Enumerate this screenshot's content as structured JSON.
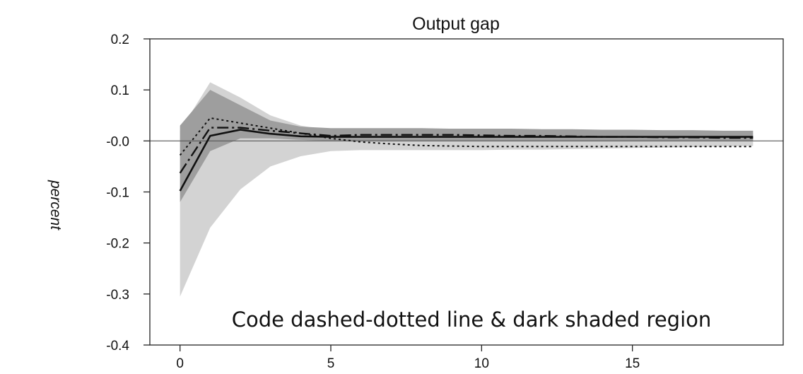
{
  "chart_data": {
    "type": "line",
    "title": "Output gap",
    "ylabel": "percent",
    "xlabel": "",
    "xlim": [
      -1,
      20
    ],
    "ylim": [
      -0.4,
      0.2
    ],
    "xticks": [
      0,
      5,
      10,
      15
    ],
    "xtick_labels": [
      "0",
      "5",
      "10",
      "15"
    ],
    "yticks": [
      0.2,
      0.1,
      0.0,
      -0.1,
      -0.2,
      -0.3,
      -0.4
    ],
    "ytick_labels": [
      "0.2",
      "0.1",
      "-0.0",
      "-0.1",
      "-0.2",
      "-0.3",
      "-0.4"
    ],
    "zero_line": true,
    "grid": false,
    "annotation": "Code dashed-dotted line & dark shaded region",
    "colors": {
      "light_band": "#d3d3d3",
      "dark_band": "#9e9e9e",
      "lines": "#111111"
    },
    "bands": [
      {
        "shade": "light",
        "x": [
          0,
          1,
          2,
          3,
          4,
          5,
          6,
          7,
          8,
          9,
          10,
          11,
          12,
          13,
          14,
          15,
          16,
          17,
          18,
          19
        ],
        "upper": [
          0.02,
          0.115,
          0.085,
          0.05,
          0.03,
          0.02,
          0.018,
          0.018,
          0.017,
          0.016,
          0.016,
          0.016,
          0.016,
          0.016,
          0.016,
          0.016,
          0.016,
          0.015,
          0.015,
          0.015
        ],
        "lower": [
          -0.305,
          -0.17,
          -0.095,
          -0.05,
          -0.03,
          -0.02,
          -0.018,
          -0.018,
          -0.018,
          -0.018,
          -0.018,
          -0.017,
          -0.017,
          -0.016,
          -0.015,
          -0.014,
          -0.013,
          -0.012,
          -0.011,
          -0.01
        ]
      },
      {
        "shade": "dark",
        "x": [
          0,
          1,
          2,
          3,
          4,
          5,
          6,
          7,
          8,
          9,
          10,
          11,
          12,
          13,
          14,
          15,
          16,
          17,
          18,
          19
        ],
        "upper": [
          0.03,
          0.1,
          0.07,
          0.04,
          0.028,
          0.025,
          0.025,
          0.025,
          0.025,
          0.024,
          0.024,
          0.024,
          0.023,
          0.023,
          0.022,
          0.022,
          0.021,
          0.021,
          0.02,
          0.02
        ],
        "lower": [
          -0.12,
          -0.02,
          0.005,
          0.005,
          0.002,
          0.0,
          0.0,
          0.0,
          0.0,
          0.0,
          0.0,
          0.0,
          0.0,
          0.0,
          0.0,
          0.0,
          0.0,
          0.0,
          0.0,
          0.0
        ]
      }
    ],
    "series": [
      {
        "style": "solid",
        "x": [
          0,
          1,
          2,
          3,
          4,
          5,
          6,
          7,
          8,
          9,
          10,
          11,
          12,
          13,
          14,
          15,
          16,
          17,
          18,
          19
        ],
        "values": [
          -0.098,
          0.01,
          0.022,
          0.014,
          0.009,
          0.008,
          0.008,
          0.008,
          0.008,
          0.008,
          0.008,
          0.008,
          0.008,
          0.008,
          0.008,
          0.008,
          0.008,
          0.008,
          0.008,
          0.008
        ]
      },
      {
        "style": "dashdot",
        "x": [
          0,
          1,
          2,
          3,
          4,
          5,
          6,
          7,
          8,
          9,
          10,
          11,
          12,
          13,
          14,
          15,
          16,
          17,
          18,
          19
        ],
        "values": [
          -0.063,
          0.026,
          0.026,
          0.02,
          0.015,
          0.01,
          0.012,
          0.012,
          0.012,
          0.012,
          0.011,
          0.01,
          0.01,
          0.009,
          0.008,
          0.008,
          0.007,
          0.007,
          0.006,
          0.006
        ]
      },
      {
        "style": "dotted",
        "x": [
          0,
          1,
          2,
          3,
          4,
          5,
          6,
          7,
          8,
          9,
          10,
          11,
          12,
          13,
          14,
          15,
          16,
          17,
          18,
          19
        ],
        "values": [
          -0.028,
          0.045,
          0.035,
          0.025,
          0.015,
          0.005,
          -0.002,
          -0.006,
          -0.009,
          -0.01,
          -0.011,
          -0.011,
          -0.011,
          -0.011,
          -0.011,
          -0.011,
          -0.011,
          -0.011,
          -0.011,
          -0.011
        ]
      }
    ]
  }
}
